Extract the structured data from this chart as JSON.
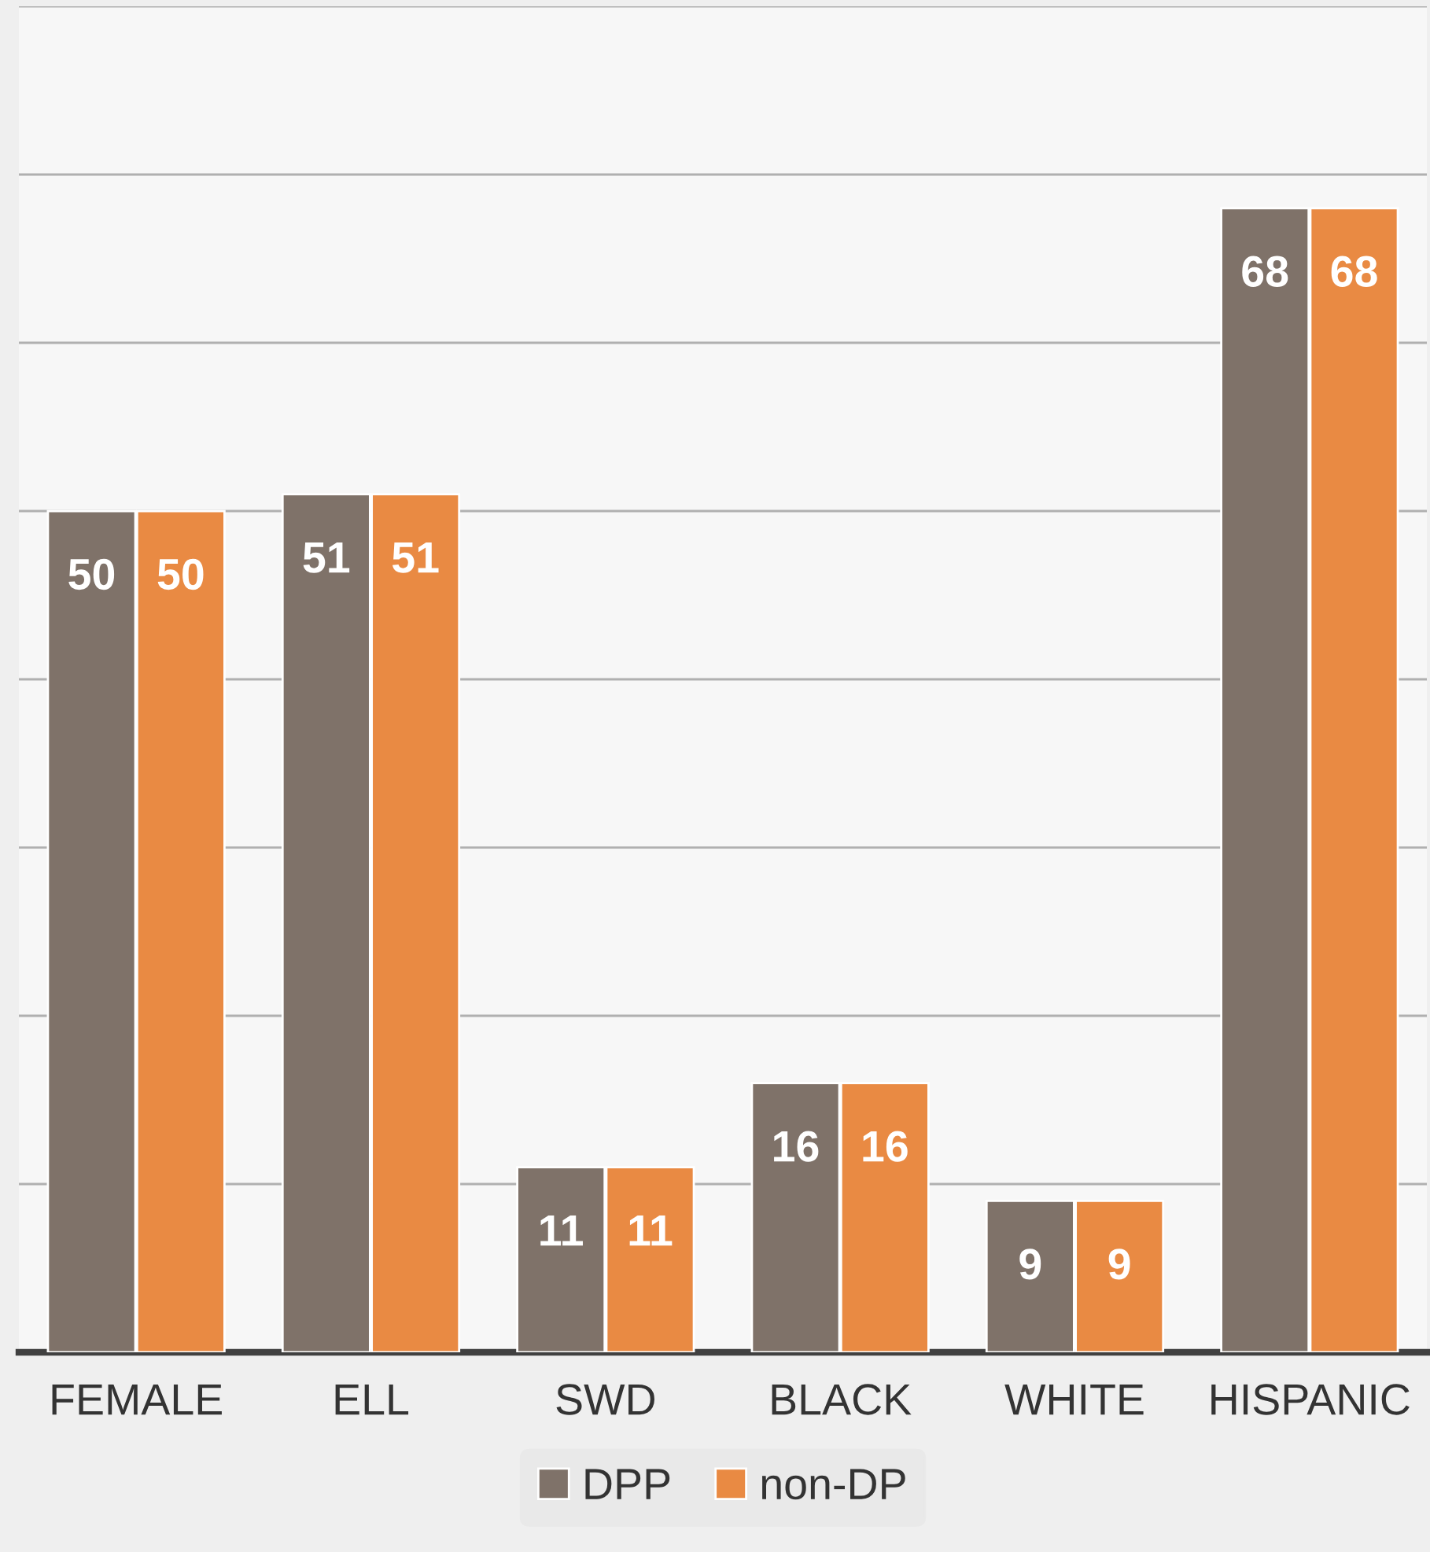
{
  "chart_data": {
    "type": "bar",
    "categories": [
      "FEMALE",
      "ELL",
      "SWD",
      "BLACK",
      "WHITE",
      "HISPANIC"
    ],
    "series": [
      {
        "name": "DPP",
        "color": "#7f7269",
        "values": [
          50,
          51,
          11,
          16,
          9,
          68
        ]
      },
      {
        "name": "non-DP",
        "color": "#e98a43",
        "values": [
          50,
          51,
          11,
          16,
          9,
          68
        ]
      }
    ],
    "ylim": [
      0,
      80
    ],
    "yticks": [
      {
        "value": 0,
        "label": null
      },
      {
        "value": 10,
        "label": null
      },
      {
        "value": 20,
        "label": null
      },
      {
        "value": 30,
        "label": null
      },
      {
        "value": 40,
        "label": null
      },
      {
        "value": 50,
        "label": null
      },
      {
        "value": 60,
        "label": null
      },
      {
        "value": 70,
        "label": null
      },
      {
        "value": 80,
        "label": null
      }
    ],
    "tick_labels": "x",
    "grid": "y",
    "data_labels": true,
    "legend": "bottom"
  }
}
